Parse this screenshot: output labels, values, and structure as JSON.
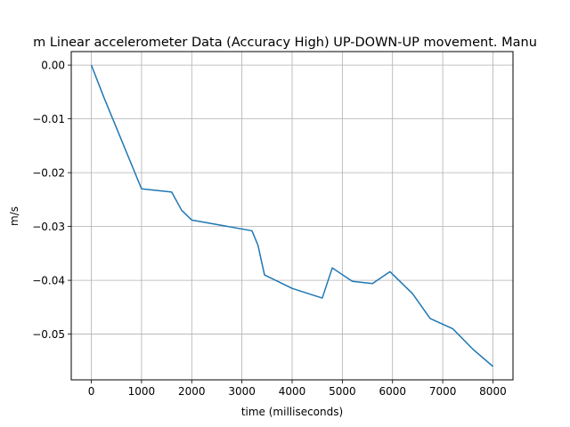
{
  "chart_data": {
    "type": "line",
    "title": "m Linear accelerometer Data (Accuracy High) UP-DOWN-UP movement. Manu",
    "xlabel": "time (milliseconds)",
    "ylabel": "m/s",
    "xlim": [
      -400,
      8400
    ],
    "ylim": [
      -0.0585,
      0.0025
    ],
    "xticks": [
      0,
      1000,
      2000,
      3000,
      4000,
      5000,
      6000,
      7000,
      8000
    ],
    "xtick_labels": [
      "0",
      "1000",
      "2000",
      "3000",
      "4000",
      "5000",
      "6000",
      "7000",
      "8000"
    ],
    "yticks": [
      0.0,
      -0.01,
      -0.02,
      -0.03,
      -0.04,
      -0.05
    ],
    "ytick_labels": [
      "0.00",
      "−0.01",
      "−0.02",
      "−0.03",
      "−0.04",
      "−0.05"
    ],
    "grid": true,
    "series": [
      {
        "color": "#1f77b4",
        "x": [
          0,
          250,
          1000,
          1600,
          1800,
          2000,
          3200,
          3320,
          3450,
          4000,
          4600,
          4800,
          5200,
          5600,
          5950,
          6400,
          6750,
          7200,
          7600,
          8000
        ],
        "y": [
          0.0,
          -0.006,
          -0.023,
          -0.0236,
          -0.027,
          -0.0288,
          -0.0308,
          -0.0335,
          -0.039,
          -0.0415,
          -0.0433,
          -0.0377,
          -0.0402,
          -0.0406,
          -0.0384,
          -0.0425,
          -0.0471,
          -0.049,
          -0.0528,
          -0.056
        ]
      }
    ]
  }
}
